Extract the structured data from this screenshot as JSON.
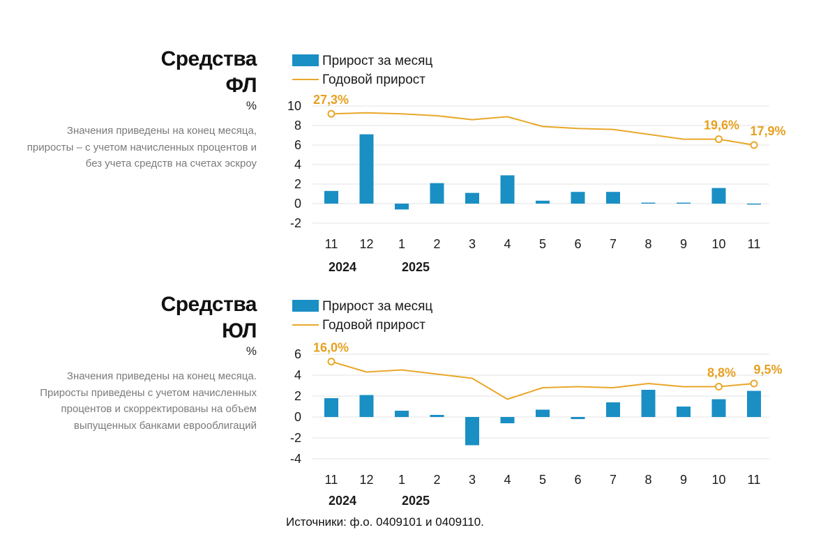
{
  "source_note": "Источники: ф.о. 0409101 и 0409110.",
  "colors": {
    "bar": "#1a8fc4",
    "line": "#e9a729",
    "grid": "#e3e3e3"
  },
  "charts": [
    {
      "title_line1": "Средства",
      "title_line2": "ФЛ",
      "unit": "%",
      "note": "Значения приведены на конец месяца, приросты – с учетом начисленных процентов и без учета средств на счетах эскроу",
      "legend_bar": "Прирост за месяц",
      "legend_line": "Годовой прирост",
      "years": [
        "2024",
        "2025"
      ]
    },
    {
      "title_line1": "Средства",
      "title_line2": "ЮЛ",
      "unit": "%",
      "note": "Значения приведены на конец месяца. Приросты приведены с учетом начисленных процентов и скорректированы на объем выпущенных банками еврооблигаций",
      "legend_bar": "Прирост за месяц",
      "legend_line": "Годовой прирост",
      "years": [
        "2024",
        "2025"
      ]
    }
  ],
  "chart_data": [
    {
      "type": "bar",
      "categories": [
        "11",
        "12",
        "1",
        "2",
        "3",
        "4",
        "5",
        "6",
        "7",
        "8",
        "9",
        "10",
        "11"
      ],
      "ylim": [
        -2,
        10
      ],
      "yticks": [
        "10",
        "8",
        "6",
        "4",
        "2",
        "0",
        "-2"
      ],
      "series": [
        {
          "name": "Прирост за месяц",
          "type": "bar",
          "values": [
            1.3,
            7.1,
            -0.6,
            2.1,
            1.1,
            2.9,
            0.3,
            1.2,
            1.2,
            0.1,
            0.1,
            1.6,
            -0.1
          ]
        },
        {
          "name": "Годовой прирост",
          "type": "line",
          "values": [
            9.2,
            9.3,
            9.2,
            9.0,
            8.6,
            8.9,
            7.9,
            7.7,
            7.6,
            7.1,
            6.6,
            6.6,
            6.0
          ]
        }
      ],
      "labels": [
        {
          "index": 0,
          "text": "27,3%"
        },
        {
          "index": 11,
          "text": "19,6%"
        },
        {
          "index": 12,
          "text": "17,9%"
        }
      ],
      "markers": [
        0,
        11,
        12
      ]
    },
    {
      "type": "bar",
      "categories": [
        "11",
        "12",
        "1",
        "2",
        "3",
        "4",
        "5",
        "6",
        "7",
        "8",
        "9",
        "10",
        "11"
      ],
      "ylim": [
        -4,
        6
      ],
      "yticks": [
        "6",
        "4",
        "2",
        "0",
        "-2",
        "-4"
      ],
      "series": [
        {
          "name": "Прирост за месяц",
          "type": "bar",
          "values": [
            1.8,
            2.1,
            0.6,
            0.2,
            -2.7,
            -0.6,
            0.7,
            -0.2,
            1.4,
            2.6,
            1.0,
            1.7,
            2.5
          ]
        },
        {
          "name": "Годовой прирост",
          "type": "line",
          "values": [
            5.3,
            4.3,
            4.5,
            4.1,
            3.7,
            1.7,
            2.8,
            2.9,
            2.8,
            3.2,
            2.9,
            2.9,
            3.2
          ]
        }
      ],
      "labels": [
        {
          "index": 0,
          "text": "16,0%"
        },
        {
          "index": 11,
          "text": "8,8%"
        },
        {
          "index": 12,
          "text": "9,5%"
        }
      ],
      "markers": [
        0,
        11,
        12
      ]
    }
  ]
}
